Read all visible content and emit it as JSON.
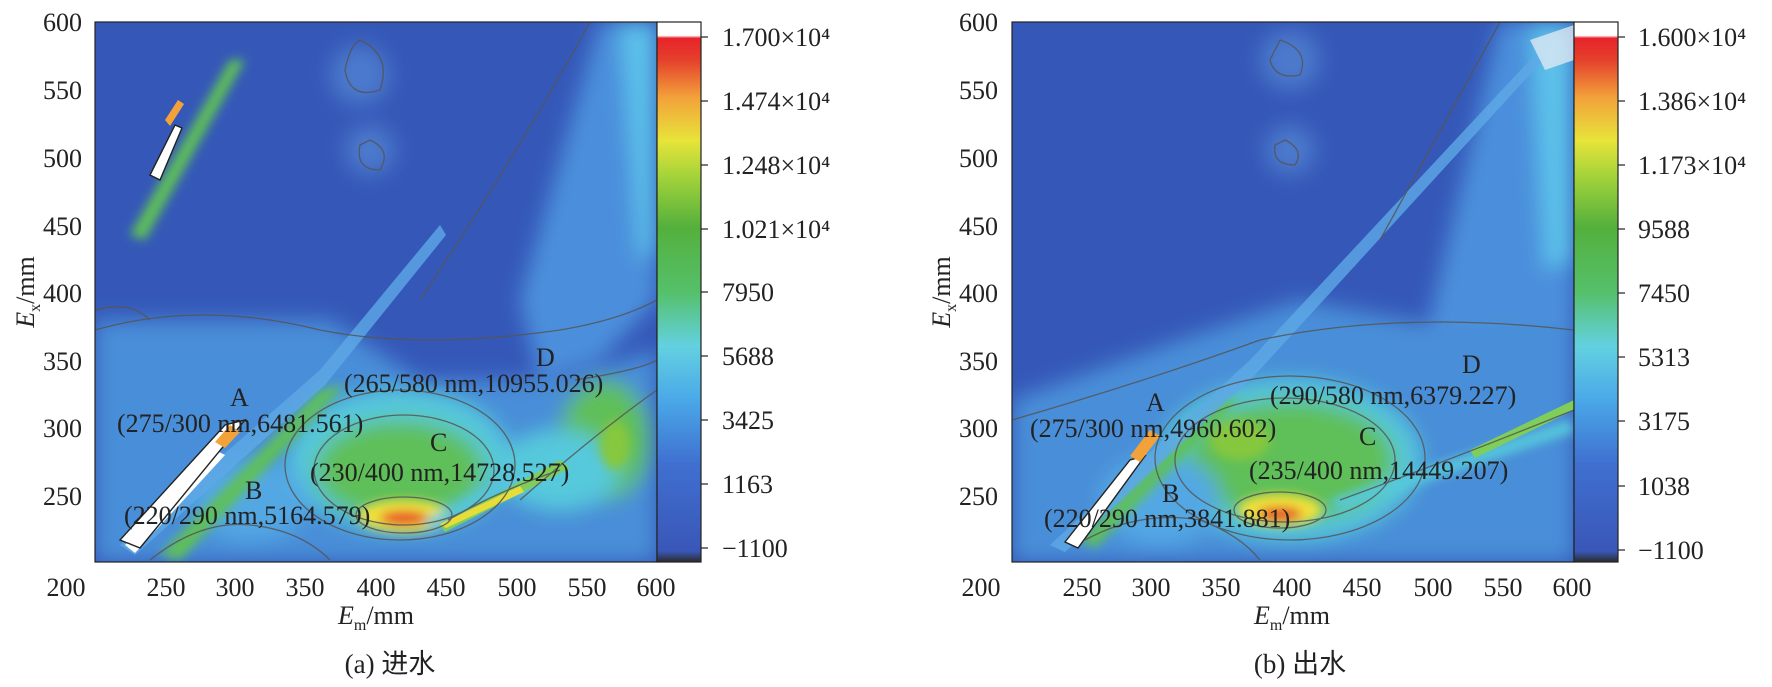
{
  "chart_data": [
    {
      "type": "heatmap",
      "subtitle": "(a) 进水",
      "xlabel": {
        "main": "E",
        "sub": "m",
        "unit": "/mm"
      },
      "ylabel": {
        "main": "E",
        "sub": "x",
        "unit": "/mm"
      },
      "xlim": [
        200,
        600
      ],
      "ylim": [
        200,
        600
      ],
      "x_ticks": [
        "200",
        "250",
        "300",
        "350",
        "400",
        "450",
        "500",
        "550",
        "600"
      ],
      "y_ticks": [
        "250",
        "300",
        "350",
        "400",
        "450",
        "500",
        "550",
        "600"
      ],
      "colorbar": {
        "min": -1100,
        "max": 17000,
        "ticks": [
          "1.700×10⁴",
          "1.474×10⁴",
          "1.248×10⁴",
          "1.021×10⁴",
          "7950",
          "5688",
          "3425",
          "1163",
          "−1100"
        ]
      },
      "peaks": [
        {
          "name": "A",
          "label": "(275/300 nm,6481.561)",
          "ex": 275,
          "em": 300,
          "value": 6481.561
        },
        {
          "name": "B",
          "label": "(220/290 nm,5164.579)",
          "ex": 220,
          "em": 290,
          "value": 5164.579
        },
        {
          "name": "C",
          "label": "(230/400 nm,14728.527)",
          "ex": 230,
          "em": 400,
          "value": 14728.527
        },
        {
          "name": "D",
          "label": "(265/580 nm,10955.026)",
          "ex": 265,
          "em": 580,
          "value": 10955.026
        }
      ]
    },
    {
      "type": "heatmap",
      "subtitle": "(b) 出水",
      "xlabel": {
        "main": "E",
        "sub": "m",
        "unit": "/mm"
      },
      "ylabel": {
        "main": "E",
        "sub": "x",
        "unit": "/mm"
      },
      "xlim": [
        200,
        600
      ],
      "ylim": [
        200,
        600
      ],
      "x_ticks": [
        "200",
        "250",
        "300",
        "350",
        "400",
        "450",
        "500",
        "550",
        "600"
      ],
      "y_ticks": [
        "250",
        "300",
        "350",
        "400",
        "450",
        "500",
        "550",
        "600"
      ],
      "colorbar": {
        "min": -1100,
        "max": 16000,
        "ticks": [
          "1.600×10⁴",
          "1.386×10⁴",
          "1.173×10⁴",
          "9588",
          "7450",
          "5313",
          "3175",
          "1038",
          "−1100"
        ]
      },
      "peaks": [
        {
          "name": "A",
          "label": "(275/300 nm,4960.602)",
          "ex": 275,
          "em": 300,
          "value": 4960.602
        },
        {
          "name": "B",
          "label": "(220/290 nm,3841.881)",
          "ex": 220,
          "em": 290,
          "value": 3841.881
        },
        {
          "name": "C",
          "label": "(235/400 nm,14449.207)",
          "ex": 235,
          "em": 400,
          "value": 14449.207
        },
        {
          "name": "D",
          "label": "(290/580 nm,6379.227)",
          "ex": 290,
          "em": 580,
          "value": 6379.227
        }
      ]
    }
  ]
}
